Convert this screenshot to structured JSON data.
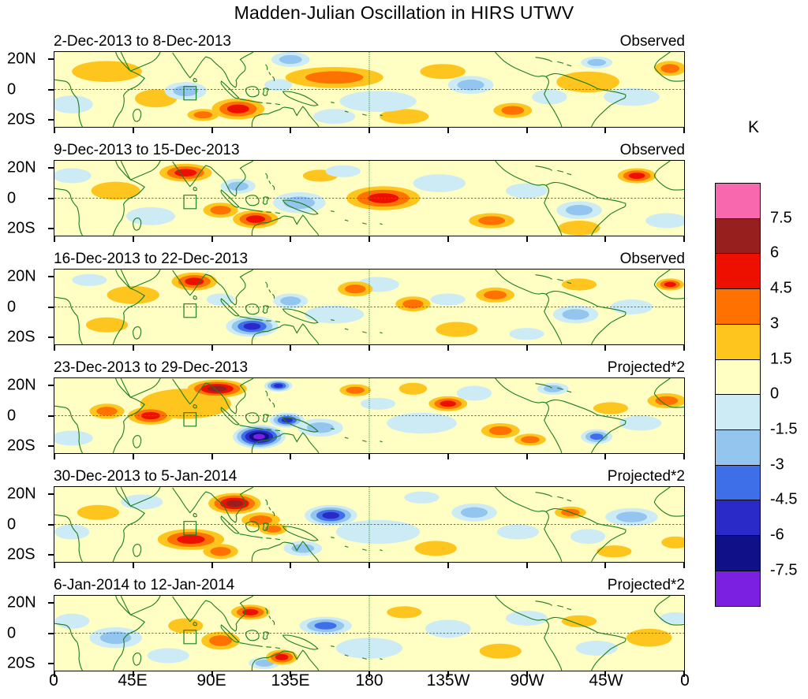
{
  "title": "Madden-Julian Oscillation in HIRS UTWV",
  "colorbar_unit": "K",
  "chart_data": {
    "type": "heatmap",
    "subtype": "filled-contour tropical maps, 6 weekly panels",
    "axes": {
      "x_ticks": [
        "0",
        "45E",
        "90E",
        "135E",
        "180",
        "135W",
        "90W",
        "45W",
        "0"
      ],
      "y_ticks": [
        "20N",
        "0",
        "20S"
      ],
      "lon_range": [
        0,
        360
      ],
      "lat_range": [
        -25,
        25
      ]
    },
    "colorbar": {
      "unit": "K",
      "tick_labels": [
        "7.5",
        "6",
        "4.5",
        "3",
        "1.5",
        "0",
        "-1.5",
        "-3",
        "-4.5",
        "-6",
        "-7.5"
      ],
      "cell_colors": [
        "#F768AE",
        "#97201E",
        "#ED1000",
        "#FF7100",
        "#FFC51F",
        "#FFFFC4",
        "#CDEBF5",
        "#93C5EE",
        "#3F6FE8",
        "#2A2AC8",
        "#101088",
        "#7B1FE0"
      ],
      "base_color": "#FFFFC4",
      "positive_blob_colors": [
        "#FFC51F",
        "#FF7100",
        "#ED1000",
        "#97201E",
        "#F768AE"
      ],
      "negative_blob_colors": [
        "#CDEBF5",
        "#93C5EE",
        "#3F6FE8",
        "#2A2AC8",
        "#101088",
        "#7B1FE0"
      ],
      "coastline_color": "#1B7E1B",
      "gridline_color": "#2F8F2F"
    },
    "anomaly_encoding": [
      "lon_deg",
      "lat_deg",
      "rx_deg",
      "ry_deg",
      "signed_contour_band_level"
    ],
    "panels": [
      {
        "date_range": "2-Dec-2013 to 8-Dec-2013",
        "source": "Observed",
        "anomalies": [
          [
            30,
            12,
            20,
            7,
            1
          ],
          [
            58,
            -6,
            12,
            6,
            1
          ],
          [
            200,
            -18,
            14,
            5,
            1
          ],
          [
            305,
            5,
            18,
            7,
            1
          ],
          [
            222,
            12,
            13,
            5,
            1
          ],
          [
            10,
            -10,
            12,
            6,
            -1
          ],
          [
            185,
            -8,
            22,
            7,
            -1
          ],
          [
            330,
            -5,
            16,
            6,
            -1
          ],
          [
            283,
            -5,
            10,
            5,
            -1
          ],
          [
            160,
            -18,
            12,
            5,
            -1
          ],
          [
            128,
            3,
            8,
            4,
            -1
          ],
          [
            75,
            -1,
            12,
            6,
            -2
          ],
          [
            135,
            20,
            11,
            5,
            -2
          ],
          [
            238,
            3,
            13,
            6,
            -2
          ],
          [
            310,
            18,
            9,
            4,
            -2
          ],
          [
            160,
            8,
            28,
            7,
            2
          ],
          [
            85,
            -17,
            9,
            4,
            2
          ],
          [
            262,
            -14,
            11,
            5,
            2
          ],
          [
            352,
            14,
            9,
            5,
            2
          ],
          [
            105,
            -13,
            15,
            7,
            3
          ]
        ]
      },
      {
        "date_range": "9-Dec-2013 to 15-Dec-2013",
        "source": "Observed",
        "anomalies": [
          [
            35,
            5,
            14,
            6,
            1
          ],
          [
            152,
            15,
            10,
            4,
            1
          ],
          [
            300,
            -20,
            12,
            5,
            1
          ],
          [
            55,
            -12,
            14,
            6,
            -1
          ],
          [
            220,
            10,
            15,
            6,
            -1
          ],
          [
            165,
            18,
            10,
            4,
            -1
          ],
          [
            270,
            5,
            12,
            5,
            -1
          ],
          [
            350,
            -15,
            12,
            5,
            -1
          ],
          [
            10,
            15,
            11,
            5,
            -1
          ],
          [
            105,
            8,
            10,
            5,
            -2
          ],
          [
            140,
            -3,
            15,
            7,
            -2
          ],
          [
            300,
            -8,
            13,
            6,
            -2
          ],
          [
            95,
            -8,
            10,
            5,
            2
          ],
          [
            250,
            -15,
            13,
            5,
            2
          ],
          [
            75,
            17,
            15,
            6,
            3
          ],
          [
            115,
            -14,
            13,
            6,
            3
          ],
          [
            188,
            0,
            21,
            8,
            3
          ],
          [
            333,
            15,
            11,
            5,
            3
          ]
        ]
      },
      {
        "date_range": "16-Dec-2013 to 22-Dec-2013",
        "source": "Observed",
        "anomalies": [
          [
            45,
            8,
            15,
            6,
            1
          ],
          [
            30,
            -12,
            12,
            5,
            1
          ],
          [
            230,
            -15,
            12,
            5,
            1
          ],
          [
            300,
            15,
            10,
            4,
            1
          ],
          [
            95,
            5,
            8,
            4,
            -1
          ],
          [
            160,
            -5,
            17,
            6,
            -1
          ],
          [
            185,
            15,
            12,
            5,
            -1
          ],
          [
            225,
            5,
            10,
            4,
            -1
          ],
          [
            330,
            0,
            12,
            5,
            -1
          ],
          [
            20,
            18,
            10,
            4,
            -1
          ],
          [
            270,
            -18,
            10,
            4,
            -1
          ],
          [
            135,
            4,
            10,
            5,
            -2
          ],
          [
            298,
            -5,
            13,
            6,
            -2
          ],
          [
            172,
            12,
            10,
            5,
            2
          ],
          [
            205,
            2,
            10,
            5,
            2
          ],
          [
            252,
            8,
            11,
            5,
            2
          ],
          [
            80,
            17,
            13,
            6,
            3
          ],
          [
            352,
            15,
            8,
            4,
            3
          ],
          [
            113,
            -13,
            15,
            7,
            -4
          ]
        ]
      },
      {
        "date_range": "23-Dec-2013 to 29-Dec-2013",
        "source": "Projected*2",
        "anomalies": [
          [
            75,
            8,
            26,
            10,
            1
          ],
          [
            318,
            5,
            10,
            4,
            1
          ],
          [
            205,
            18,
            8,
            4,
            1
          ],
          [
            210,
            -5,
            20,
            7,
            -1
          ],
          [
            240,
            15,
            10,
            5,
            -1
          ],
          [
            335,
            -5,
            12,
            5,
            -1
          ],
          [
            10,
            -15,
            12,
            5,
            -1
          ],
          [
            185,
            8,
            10,
            4,
            -1
          ],
          [
            152,
            -8,
            13,
            6,
            -2
          ],
          [
            285,
            18,
            9,
            4,
            -2
          ],
          [
            30,
            3,
            10,
            5,
            2
          ],
          [
            172,
            17,
            9,
            4,
            2
          ],
          [
            255,
            -10,
            11,
            5,
            2
          ],
          [
            272,
            -16,
            9,
            4,
            2
          ],
          [
            350,
            10,
            11,
            5,
            2
          ],
          [
            225,
            8,
            11,
            5,
            3
          ],
          [
            55,
            0,
            13,
            6,
            3
          ],
          [
            310,
            -14,
            9,
            5,
            -3
          ],
          [
            133,
            -3,
            10,
            5,
            -4
          ],
          [
            128,
            20,
            8,
            4,
            -4
          ],
          [
            93,
            18,
            17,
            6,
            4
          ],
          [
            117,
            -14,
            15,
            8,
            -6
          ]
        ]
      },
      {
        "date_range": "30-Dec-2013 to 5-Jan-2014",
        "source": "Projected*2",
        "anomalies": [
          [
            25,
            8,
            12,
            5,
            1
          ],
          [
            218,
            -16,
            12,
            5,
            1
          ],
          [
            320,
            -18,
            10,
            4,
            1
          ],
          [
            355,
            -12,
            8,
            4,
            1
          ],
          [
            50,
            15,
            12,
            5,
            -1
          ],
          [
            185,
            -5,
            24,
            8,
            -1
          ],
          [
            265,
            -5,
            12,
            5,
            -1
          ],
          [
            305,
            -8,
            10,
            5,
            -1
          ],
          [
            10,
            -5,
            10,
            5,
            -1
          ],
          [
            210,
            18,
            10,
            4,
            -1
          ],
          [
            142,
            -16,
            11,
            5,
            -2
          ],
          [
            240,
            8,
            13,
            6,
            -2
          ],
          [
            330,
            5,
            15,
            6,
            -2
          ],
          [
            118,
            3,
            11,
            5,
            2
          ],
          [
            125,
            -3,
            8,
            4,
            2
          ],
          [
            95,
            -18,
            10,
            5,
            2
          ],
          [
            295,
            8,
            9,
            4,
            2
          ],
          [
            78,
            -10,
            19,
            7,
            3
          ],
          [
            103,
            14,
            15,
            7,
            4
          ],
          [
            158,
            6,
            15,
            7,
            -4
          ]
        ]
      },
      {
        "date_range": "6-Jan-2014 to 12-Jan-2014",
        "source": "Projected*2",
        "anomalies": [
          [
            75,
            5,
            10,
            5,
            1
          ],
          [
            200,
            14,
            10,
            4,
            1
          ],
          [
            255,
            -12,
            12,
            5,
            1
          ],
          [
            300,
            8,
            10,
            4,
            1
          ],
          [
            340,
            -3,
            13,
            6,
            1
          ],
          [
            65,
            -15,
            12,
            5,
            -1
          ],
          [
            180,
            -10,
            19,
            7,
            -1
          ],
          [
            225,
            3,
            13,
            6,
            -1
          ],
          [
            270,
            10,
            12,
            5,
            -1
          ],
          [
            310,
            -10,
            12,
            5,
            -1
          ],
          [
            355,
            10,
            9,
            4,
            -1
          ],
          [
            10,
            8,
            10,
            5,
            -1
          ],
          [
            35,
            -3,
            15,
            7,
            -2
          ],
          [
            120,
            -20,
            9,
            4,
            -2
          ],
          [
            95,
            -5,
            11,
            6,
            2
          ],
          [
            112,
            14,
            11,
            5,
            3
          ],
          [
            130,
            -16,
            9,
            5,
            3
          ],
          [
            155,
            5,
            15,
            6,
            -3
          ]
        ]
      }
    ]
  }
}
